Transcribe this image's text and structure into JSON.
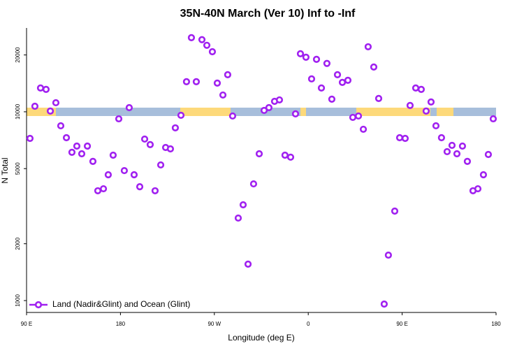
{
  "chart_data": {
    "type": "scatter",
    "title": "35N-40N March (Ver 10)   Inf to -Inf",
    "xlabel": "Longitude (deg E)",
    "ylabel": "N Total",
    "xlim": [
      90,
      540
    ],
    "xticks": [
      {
        "value": 90,
        "label": "90 E"
      },
      {
        "value": 180,
        "label": "180"
      },
      {
        "value": 270,
        "label": "90 W"
      },
      {
        "value": 360,
        "label": "0"
      },
      {
        "value": 450,
        "label": "90 E"
      },
      {
        "value": 540,
        "label": "180"
      }
    ],
    "ylim": [
      865,
      27800
    ],
    "yticks": [
      1000,
      2000,
      5000,
      10000,
      20000
    ],
    "log_y": true,
    "legend": "bottom-left",
    "series": [
      {
        "name": "Land (Nadir&Glint) and Ocean (Glint)",
        "color": "#a020f0",
        "x": [
          93.3,
          98,
          103.4,
          108.7,
          112.8,
          118.1,
          122.8,
          128.2,
          133.5,
          138.2,
          142.9,
          148.3,
          153.6,
          158.3,
          163.7,
          168.3,
          173,
          178.4,
          183.7,
          188.4,
          193.1,
          198.5,
          203.2,
          208.5,
          213.2,
          218.6,
          223.3,
          227.9,
          232.6,
          238,
          243.3,
          248,
          252.7,
          258.1,
          262.8,
          268.1,
          272.8,
          278.2,
          282.8,
          287.5,
          292.9,
          297.6,
          302.3,
          307.6,
          313,
          317.7,
          322.3,
          327.7,
          332.4,
          337.7,
          343.1,
          347.8,
          352.5,
          357.8,
          363.2,
          367.9,
          372.6,
          377.9,
          382.6,
          388,
          392.7,
          398,
          402.7,
          408.1,
          412.8,
          417.4,
          422.8,
          427.5,
          432.8,
          436.8,
          442.9,
          447.6,
          452.9,
          457.6,
          463,
          468.3,
          473,
          477.7,
          482.4,
          487.7,
          493.1,
          497.8,
          502.5,
          507.8,
          512.5,
          517.9,
          522.6,
          527.9,
          532.6,
          537.3
        ],
        "values": [
          7230,
          10700,
          13370,
          13140,
          10090,
          11170,
          8430,
          7290,
          6100,
          6580,
          5990,
          6580,
          5460,
          3816,
          3910,
          4640,
          5890,
          9180,
          4880,
          10520,
          4640,
          4010,
          7170,
          6700,
          3816,
          5230,
          6470,
          6360,
          8220,
          9580,
          14430,
          24700,
          14430,
          24100,
          22500,
          20800,
          14190,
          12270,
          15720,
          9500,
          2736,
          3216,
          1559,
          4150,
          5990,
          10170,
          10520,
          11360,
          11560,
          5890,
          5750,
          9750,
          20300,
          19450,
          14940,
          18960,
          13370,
          18030,
          11660,
          15720,
          14310,
          14680,
          9340,
          9500,
          8080,
          22100,
          17260,
          11760,
          958,
          1741,
          2978,
          7290,
          7230,
          10800,
          13370,
          13140,
          10090,
          11270,
          8430,
          7290,
          6150,
          6640,
          5990,
          6580,
          5460,
          3816,
          3910,
          4640,
          5940,
          9180
        ]
      }
    ]
  }
}
